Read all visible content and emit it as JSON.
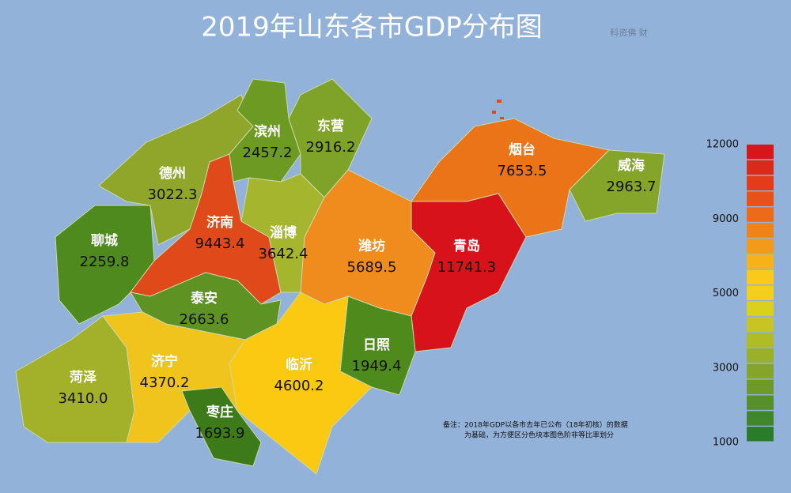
{
  "title": "2019年山东各市GDP分布图",
  "watermark": "科资佛 财",
  "cities": [
    {
      "name": "德州",
      "gdp": 3022.3,
      "color": "#8fa62a"
    },
    {
      "name": "聊城",
      "gdp": 2259.8,
      "color": "#4e8a1e"
    },
    {
      "name": "济南",
      "gdp": 9443.4,
      "color": "#e04a1a"
    },
    {
      "name": "滨州",
      "gdp": 2457.2,
      "color": "#6c9a22"
    },
    {
      "name": "东营",
      "gdp": 2916.2,
      "color": "#7fa228"
    },
    {
      "name": "淄博",
      "gdp": 3642.4,
      "color": "#a5b52e"
    },
    {
      "name": "潍坊",
      "gdp": 5689.5,
      "color": "#f08b1e"
    },
    {
      "name": "烟台",
      "gdp": 7653.5,
      "color": "#ec7418"
    },
    {
      "name": "威海",
      "gdp": 2963.7,
      "color": "#84a42a"
    },
    {
      "name": "青岛",
      "gdp": 11741.3,
      "color": "#d8121a"
    },
    {
      "name": "泰安",
      "gdp": 2663.6,
      "color": "#5e9222"
    },
    {
      "name": "日照",
      "gdp": 1949.4,
      "color": "#4f8a1c"
    },
    {
      "name": "临沂",
      "gdp": 4600.2,
      "color": "#fbc812"
    },
    {
      "name": "菏泽",
      "gdp": 3410,
      "gdp_label": "3410.0",
      "color": "#a2b02a"
    },
    {
      "name": "济宁",
      "gdp": 4370.2,
      "color": "#f0c41c"
    },
    {
      "name": "枣庄",
      "gdp": 1693.9,
      "color": "#3d7a1a"
    }
  ],
  "note": [
    "备注：2018年GDP以各市去年已公布（18年初核）的数据",
    "为基础，为方便区分色块本图色阶非等比率划分"
  ],
  "legend": {
    "ticks": [
      12000,
      9000,
      5000,
      3000,
      1000
    ],
    "colors": [
      "#d7161b",
      "#dc2a1a",
      "#e33c1a",
      "#e8521a",
      "#ec6a1a",
      "#f0821a",
      "#f39a1a",
      "#f7b21a",
      "#fbc91a",
      "#f2cf1a",
      "#dcd01e",
      "#c6c524",
      "#b0bb26",
      "#9ab028",
      "#84a52a",
      "#6e9a2a",
      "#57902a",
      "#40862a",
      "#2a7c2a"
    ]
  }
}
